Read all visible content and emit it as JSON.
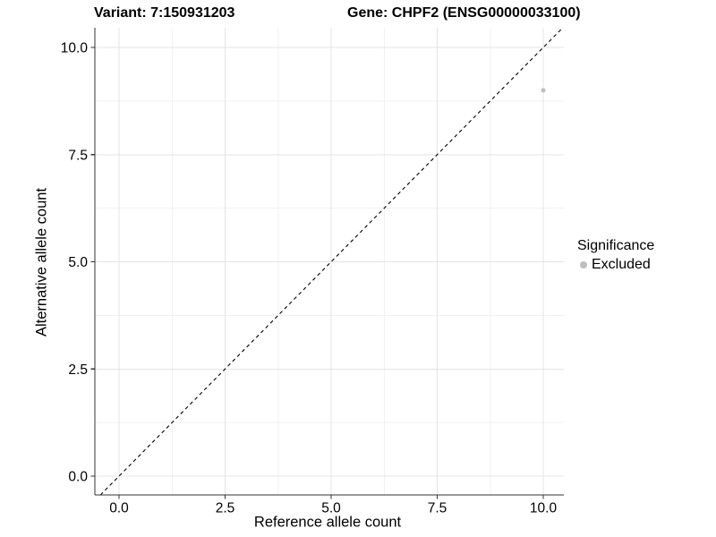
{
  "figure": {
    "titles": {
      "variant": "Variant: 7:150931203",
      "gene": "Gene: CHPF2 (ENSG00000033100)"
    }
  },
  "legend": {
    "title": "Significance",
    "position": "right",
    "items": [
      {
        "label": "Excluded",
        "color": "#bebebe",
        "marker": "circle"
      }
    ]
  },
  "chart_data": {
    "type": "scatter",
    "title": "Variant: 7:150931203 | Gene: CHPF2 (ENSG00000033100)",
    "xlabel": "Reference allele count",
    "ylabel": "Alternative allele count",
    "series": [
      {
        "name": "Excluded",
        "color": "#bebebe",
        "points": [
          {
            "x": 10,
            "y": 9
          }
        ]
      }
    ],
    "reference_line": {
      "type": "identity",
      "equation": "y = x",
      "style": "dashed",
      "color": "#000000"
    },
    "x_ticks": {
      "values": [
        0,
        2.5,
        5,
        7.5,
        10
      ],
      "labels": [
        "0.0",
        "2.5",
        "5.0",
        "7.5",
        "10.0"
      ]
    },
    "y_ticks": {
      "values": [
        0,
        2.5,
        5,
        7.5,
        10
      ],
      "labels": [
        "0.0",
        "2.5",
        "5.0",
        "7.5",
        "10.0"
      ]
    },
    "xlim": [
      -0.57,
      10.49
    ],
    "ylim": [
      -0.44,
      10.46
    ],
    "grid": {
      "major": true,
      "minor": true
    },
    "legend_position": "right"
  },
  "colors": {
    "point": "#bebebe",
    "grid_major": "#e4e4e4",
    "grid_minor": "#f1f1f1",
    "axis": "#333333",
    "tick_text": "#000000",
    "reference_line": "#000000",
    "background": "#ffffff"
  }
}
